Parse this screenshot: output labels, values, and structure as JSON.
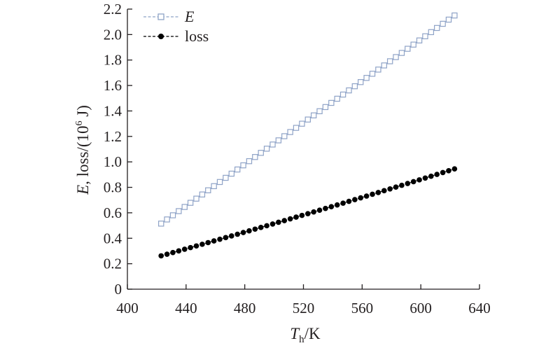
{
  "chart_data": {
    "type": "line",
    "title": "",
    "xlabel_main": "T",
    "xlabel_sub": "h",
    "xlabel_unit": "/K",
    "ylabel_series1": "E",
    "ylabel_rest": ", loss/(10",
    "ylabel_exp": "6",
    "ylabel_unit": " J)",
    "xlim": [
      400,
      640
    ],
    "ylim": [
      0,
      2.2
    ],
    "xticks": [
      "400",
      "440",
      "480",
      "520",
      "560",
      "600",
      "640"
    ],
    "yticks": [
      "0",
      "0.2",
      "0.4",
      "0.6",
      "0.8",
      "1.0",
      "1.2",
      "1.4",
      "1.6",
      "1.8",
      "2.0",
      "2.2"
    ],
    "grid": false,
    "legend_position": "top-left",
    "x_start": 423,
    "x_end": 623,
    "x_step": 4,
    "series": [
      {
        "name": "E",
        "marker": "open-square",
        "color": "#8fa3c7",
        "start": 0.515,
        "end": 2.15,
        "curve": 0
      },
      {
        "name": "loss",
        "marker": "filled-circle",
        "color": "#000000",
        "start": 0.262,
        "end": 0.945,
        "curve": 0.06
      }
    ]
  }
}
